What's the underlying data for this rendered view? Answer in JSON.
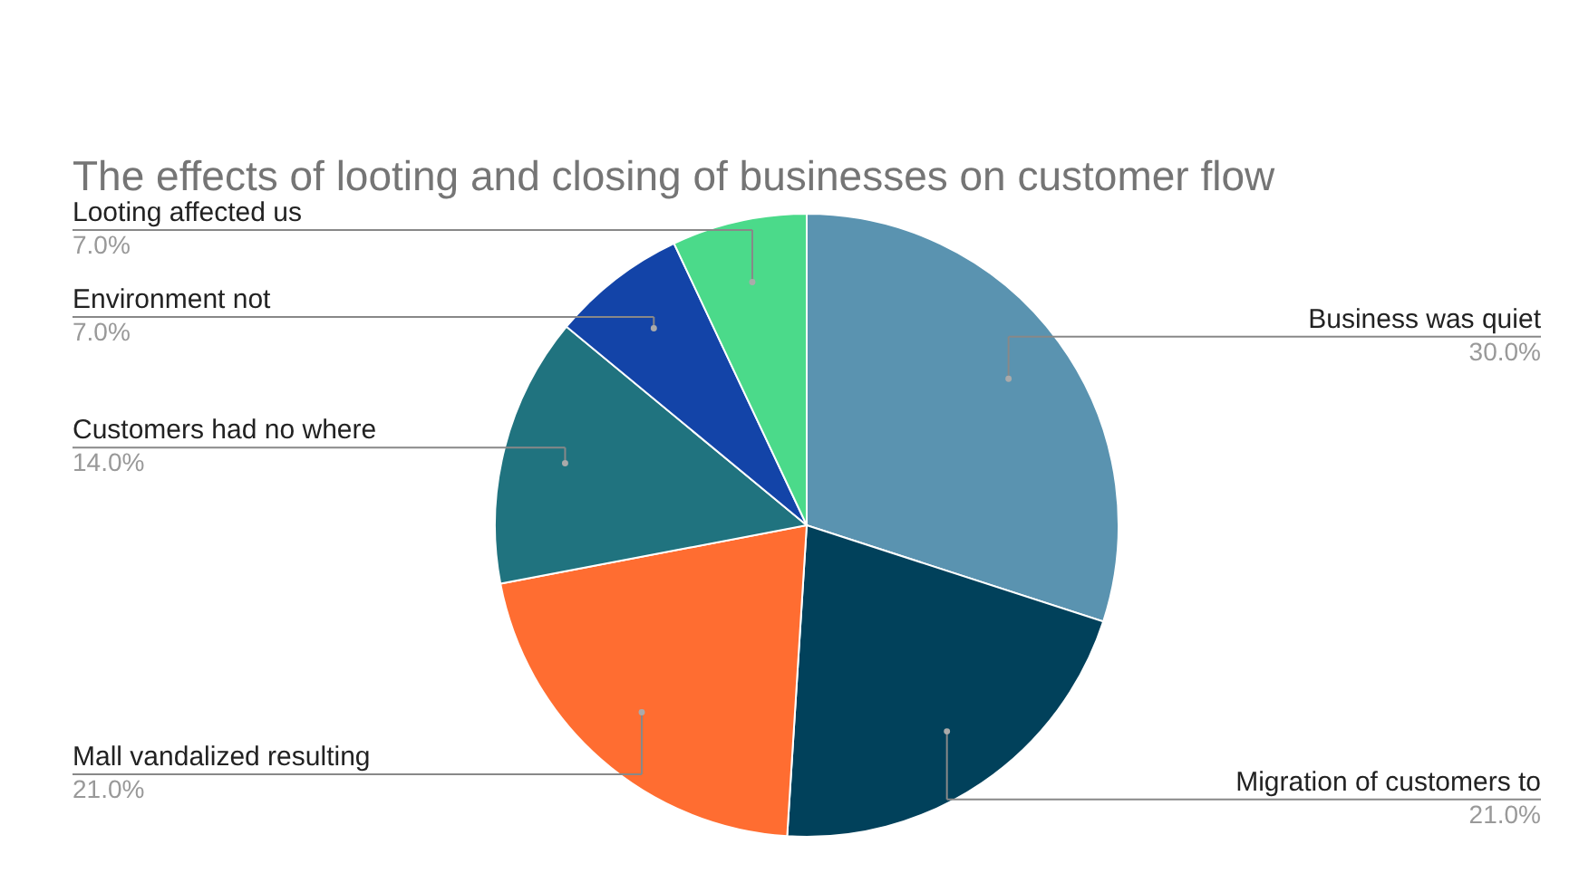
{
  "chart_data": {
    "type": "pie",
    "title": "The effects of looting and closing of businesses on customer flow",
    "categories": [
      "Business was quiet",
      "Migration of customers to",
      "Mall vandalized resulting",
      "Customers had no where",
      "Environment not",
      "Looting affected us"
    ],
    "values": [
      30,
      21,
      21,
      14,
      7,
      7
    ],
    "value_labels": [
      "30.0%",
      "21.0%",
      "21.0%",
      "14.0%",
      "7.0%",
      "7.0%"
    ],
    "colors": [
      "#5a93b0",
      "#01415b",
      "#ff6d31",
      "#20737f",
      "#1344a8",
      "#4bda8a"
    ],
    "legend": false
  }
}
